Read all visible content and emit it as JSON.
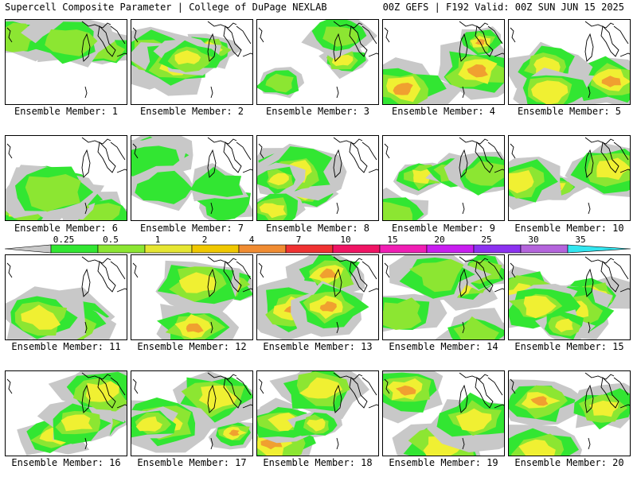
{
  "header": {
    "title_left": "Supercell Composite Parameter | College of DuPage NEXLAB",
    "title_right": "00Z GEFS | F192 Valid: 00Z SUN JUN 15 2025"
  },
  "colorbar": {
    "labels": [
      "0.25",
      "0.5",
      "1",
      "2",
      "4",
      "7",
      "10",
      "15",
      "20",
      "25",
      "30",
      "35"
    ],
    "colors": [
      "#c8c8c8",
      "#32e632",
      "#8ce632",
      "#e6e632",
      "#f0c800",
      "#f08c32",
      "#f03232",
      "#f01464",
      "#f01eb4",
      "#c81ef0",
      "#8c32f0",
      "#b464dc",
      "#32e6f0"
    ]
  },
  "palette": {
    "gray": "#c8c8c8",
    "green": "#32e632",
    "lightgreen": "#8ce632",
    "yellow": "#f0f032",
    "orange": "#f0a030",
    "red": "#f03232",
    "magenta": "#e632c8"
  },
  "members": [
    {
      "label": "Ensemble Member: 1",
      "intensity": 2
    },
    {
      "label": "Ensemble Member: 2",
      "intensity": 3
    },
    {
      "label": "Ensemble Member: 3",
      "intensity": 2
    },
    {
      "label": "Ensemble Member: 4",
      "intensity": 4
    },
    {
      "label": "Ensemble Member: 5",
      "intensity": 3
    },
    {
      "label": "Ensemble Member: 6",
      "intensity": 2
    },
    {
      "label": "Ensemble Member: 7",
      "intensity": 1
    },
    {
      "label": "Ensemble Member: 8",
      "intensity": 3
    },
    {
      "label": "Ensemble Member: 9",
      "intensity": 2
    },
    {
      "label": "Ensemble Member: 10",
      "intensity": 3
    },
    {
      "label": "Ensemble Member: 11",
      "intensity": 3
    },
    {
      "label": "Ensemble Member: 12",
      "intensity": 3
    },
    {
      "label": "Ensemble Member: 13",
      "intensity": 4
    },
    {
      "label": "Ensemble Member: 14",
      "intensity": 2
    },
    {
      "label": "Ensemble Member: 15",
      "intensity": 3
    },
    {
      "label": "Ensemble Member: 16",
      "intensity": 3
    },
    {
      "label": "Ensemble Member: 17",
      "intensity": 3
    },
    {
      "label": "Ensemble Member: 18",
      "intensity": 3
    },
    {
      "label": "Ensemble Member: 19",
      "intensity": 3
    },
    {
      "label": "Ensemble Member: 20",
      "intensity": 3
    }
  ]
}
